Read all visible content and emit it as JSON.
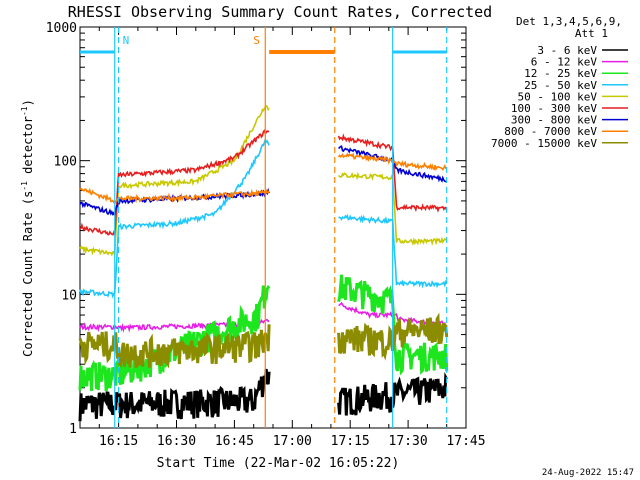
{
  "title": "RHESSI Observing Summary Count Rates, Corrected",
  "xlabel": "Start Time (22-Mar-02 16:05:22)",
  "ylabel": "Corrected Count Rate (s",
  "ylabel_sup": "-1",
  "ylabel_mid": " detector",
  "ylabel_end": ")",
  "footer_date": "24-Aug-2022 15:47",
  "legend_header": [
    "Det 1,3,4,5,6,9,",
    "Att 1"
  ],
  "markers": [
    {
      "label": "N",
      "color": "#1ec8ff"
    },
    {
      "label": "S",
      "color": "#ff8000"
    }
  ],
  "chart_data": {
    "type": "line",
    "title": "RHESSI Observing Summary Count Rates, Corrected",
    "xlabel": "Start Time (22-Mar-02 16:05:22)",
    "ylabel": "Corrected Count Rate (s^-1 detector^-1)",
    "xscale": "time (minutes)",
    "yscale": "log",
    "xlim": [
      "16:05",
      "17:45"
    ],
    "ylim": [
      1,
      1000
    ],
    "xticks": [
      "16:15",
      "16:30",
      "16:45",
      "17:00",
      "17:15",
      "17:30",
      "17:45"
    ],
    "yticks": [
      "1",
      "10",
      "100",
      "1000"
    ],
    "series": [
      {
        "name": "3 - 6 keV",
        "color": "#000000",
        "noisy": true,
        "points": [
          [
            "16:05",
            1.5
          ],
          [
            "16:50",
            1.6
          ],
          [
            "16:53",
            2.5
          ],
          [
            "17:12",
            1.6
          ],
          [
            "17:40",
            2.0
          ]
        ]
      },
      {
        "name": "6 - 12 keV",
        "color": "#e61ee6",
        "noisy": false,
        "points": [
          [
            "16:05",
            5.7
          ],
          [
            "16:15",
            5.7
          ],
          [
            "16:15",
            5.6
          ],
          [
            "16:51",
            6.0
          ],
          [
            "16:54",
            6.5
          ],
          [
            "17:12",
            8.5
          ],
          [
            "17:20",
            7.0
          ],
          [
            "17:27",
            7.0
          ],
          [
            "17:27",
            6.5
          ],
          [
            "17:40",
            6.0
          ]
        ]
      },
      {
        "name": "12 - 25 keV",
        "color": "#1ee61e",
        "noisy": true,
        "points": [
          [
            "16:05",
            2.5
          ],
          [
            "16:15",
            2.5
          ],
          [
            "16:51",
            7.0
          ],
          [
            "16:54",
            13.0
          ],
          [
            "17:12",
            11.5
          ],
          [
            "17:26",
            9.0
          ],
          [
            "17:27",
            3.5
          ],
          [
            "17:40",
            3.5
          ]
        ]
      },
      {
        "name": "25 - 50 keV",
        "color": "#1ec8ff",
        "noisy": false,
        "points": [
          [
            "16:05",
            10.5
          ],
          [
            "16:14",
            10.0
          ],
          [
            "16:15",
            32.0
          ],
          [
            "16:30",
            34.0
          ],
          [
            "16:40",
            40.0
          ],
          [
            "16:48",
            75.0
          ],
          [
            "16:53",
            140.0
          ],
          [
            "17:12",
            38.0
          ],
          [
            "17:26",
            35.0
          ],
          [
            "17:27",
            12.0
          ],
          [
            "17:40",
            12.0
          ]
        ]
      },
      {
        "name": "50 - 100 keV",
        "color": "#c8c800",
        "noisy": false,
        "points": [
          [
            "16:05",
            22.0
          ],
          [
            "16:14",
            20.0
          ],
          [
            "16:15",
            65.0
          ],
          [
            "16:35",
            70.0
          ],
          [
            "16:45",
            100.0
          ],
          [
            "16:53",
            260.0
          ],
          [
            "17:12",
            78.0
          ],
          [
            "17:26",
            75.0
          ],
          [
            "17:27",
            25.0
          ],
          [
            "17:40",
            25.0
          ]
        ]
      },
      {
        "name": "100 - 300 keV",
        "color": "#e61e1e",
        "noisy": false,
        "points": [
          [
            "16:05",
            32.0
          ],
          [
            "16:14",
            28.0
          ],
          [
            "16:15",
            78.0
          ],
          [
            "16:35",
            85.0
          ],
          [
            "16:45",
            105.0
          ],
          [
            "16:53",
            165.0
          ],
          [
            "17:12",
            150.0
          ],
          [
            "17:26",
            125.0
          ],
          [
            "17:27",
            45.0
          ],
          [
            "17:40",
            44.0
          ]
        ]
      },
      {
        "name": "300 - 800 keV",
        "color": "#0000d2",
        "noisy": false,
        "points": [
          [
            "16:05",
            48.0
          ],
          [
            "16:14",
            40.0
          ],
          [
            "16:15",
            50.0
          ],
          [
            "16:30",
            52.0
          ],
          [
            "16:45",
            55.0
          ],
          [
            "16:53",
            57.0
          ],
          [
            "17:12",
            125.0
          ],
          [
            "17:26",
            100.0
          ],
          [
            "17:27",
            85.0
          ],
          [
            "17:40",
            72.0
          ]
        ]
      },
      {
        "name": "800 - 7000 keV",
        "color": "#ff8000",
        "noisy": false,
        "points": [
          [
            "16:05",
            62.0
          ],
          [
            "16:14",
            50.0
          ],
          [
            "16:15",
            52.0
          ],
          [
            "16:35",
            53.0
          ],
          [
            "16:45",
            56.0
          ],
          [
            "16:53",
            57.0
          ],
          [
            "17:12",
            110.0
          ],
          [
            "17:26",
            100.0
          ],
          [
            "17:27",
            95.0
          ],
          [
            "17:40",
            88.0
          ]
        ]
      },
      {
        "name": "7000 - 15000 keV",
        "color": "#8c8c00",
        "noisy": true,
        "points": [
          [
            "16:05",
            4.3
          ],
          [
            "16:15",
            4.2
          ],
          [
            "16:15",
            3.6
          ],
          [
            "16:51",
            4.2
          ],
          [
            "16:54",
            5.0
          ],
          [
            "17:12",
            4.8
          ],
          [
            "17:26",
            4.5
          ],
          [
            "17:27",
            5.3
          ],
          [
            "17:40",
            5.5
          ]
        ]
      }
    ],
    "segments": [
      {
        "name": "N",
        "color": "#1ec8ff",
        "value": 650,
        "ranges": [
          [
            "16:05",
            "16:14"
          ],
          [
            "17:26",
            "17:40"
          ]
        ]
      },
      {
        "name": "S",
        "color": "#ff8000",
        "value": 650,
        "ranges": [
          [
            "16:54",
            "17:11"
          ]
        ]
      }
    ],
    "vlines": [
      {
        "time": "16:14",
        "color": "#1ec8ff",
        "dashed": false
      },
      {
        "time": "16:15",
        "color": "#1ec8ff",
        "dashed": true
      },
      {
        "time": "16:53",
        "color": "#ff8000",
        "dashed": false
      },
      {
        "time": "17:11",
        "color": "#ff8000",
        "dashed": true
      },
      {
        "time": "17:26",
        "color": "#1ec8ff",
        "dashed": false
      },
      {
        "time": "17:40",
        "color": "#1ec8ff",
        "dashed": true
      }
    ],
    "gap": [
      "16:54",
      "17:12"
    ],
    "legend_position": "right"
  }
}
